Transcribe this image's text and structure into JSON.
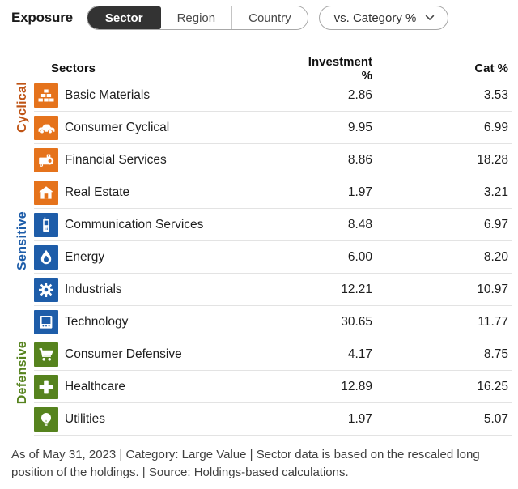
{
  "header": {
    "title": "Exposure",
    "tabs": [
      {
        "label": "Sector",
        "selected": true
      },
      {
        "label": "Region",
        "selected": false
      },
      {
        "label": "Country",
        "selected": false
      }
    ],
    "dropdown": {
      "label": "vs. Category %",
      "icon": "chevron-down-icon"
    }
  },
  "table": {
    "columns": {
      "sectors": "Sectors",
      "investment": "Investment %",
      "cat": "Cat %"
    },
    "groups": [
      {
        "label": "Cyclical",
        "label_color": "#bf5415",
        "icon_color": "#e5731c",
        "rows": [
          {
            "sector": "Basic Materials",
            "icon": "basic-materials-icon",
            "investment": "2.86",
            "cat": "3.53"
          },
          {
            "sector": "Consumer Cyclical",
            "icon": "consumer-cyclical-icon",
            "investment": "9.95",
            "cat": "6.99"
          },
          {
            "sector": "Financial Services",
            "icon": "financial-services-icon",
            "investment": "8.86",
            "cat": "18.28"
          },
          {
            "sector": "Real Estate",
            "icon": "real-estate-icon",
            "investment": "1.97",
            "cat": "3.21"
          }
        ]
      },
      {
        "label": "Sensitive",
        "label_color": "#1e5da9",
        "icon_color": "#1e5da9",
        "rows": [
          {
            "sector": "Communication Services",
            "icon": "communication-services-icon",
            "investment": "8.48",
            "cat": "6.97"
          },
          {
            "sector": "Energy",
            "icon": "energy-icon",
            "investment": "6.00",
            "cat": "8.20"
          },
          {
            "sector": "Industrials",
            "icon": "industrials-icon",
            "investment": "12.21",
            "cat": "10.97"
          },
          {
            "sector": "Technology",
            "icon": "technology-icon",
            "investment": "30.65",
            "cat": "11.77"
          }
        ]
      },
      {
        "label": "Defensive",
        "label_color": "#56831e",
        "icon_color": "#56831e",
        "rows": [
          {
            "sector": "Consumer Defensive",
            "icon": "consumer-defensive-icon",
            "investment": "4.17",
            "cat": "8.75"
          },
          {
            "sector": "Healthcare",
            "icon": "healthcare-icon",
            "investment": "12.89",
            "cat": "16.25"
          },
          {
            "sector": "Utilities",
            "icon": "utilities-icon",
            "investment": "1.97",
            "cat": "5.07"
          }
        ]
      }
    ]
  },
  "footer": {
    "text": "As of May 31, 2023 | Category: Large Value | Sector data is based on the rescaled long position of the holdings. | Source: Holdings-based calculations."
  }
}
